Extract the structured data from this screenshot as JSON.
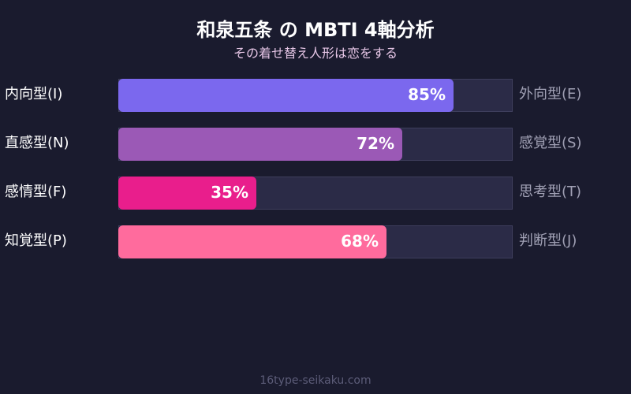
{
  "chart_data": {
    "type": "bar",
    "orientation": "horizontal",
    "title": "和泉五条 の MBTI 4軸分析",
    "subtitle": "その着せ替え人形は恋をする",
    "xlim": [
      0,
      100
    ],
    "rows": [
      {
        "left": "内向型(I)",
        "right": "外向型(E)",
        "value": 85,
        "label": "85%",
        "color": "#7b68ee"
      },
      {
        "left": "直感型(N)",
        "right": "感覚型(S)",
        "value": 72,
        "label": "72%",
        "color": "#9b59b6"
      },
      {
        "left": "感情型(F)",
        "right": "思考型(T)",
        "value": 35,
        "label": "35%",
        "color": "#e91e8c"
      },
      {
        "left": "知覚型(P)",
        "right": "判断型(J)",
        "value": 68,
        "label": "68%",
        "color": "#ff6b9d"
      }
    ],
    "track_color": "#2b2b47"
  },
  "footer": "16type-seikaku.com"
}
